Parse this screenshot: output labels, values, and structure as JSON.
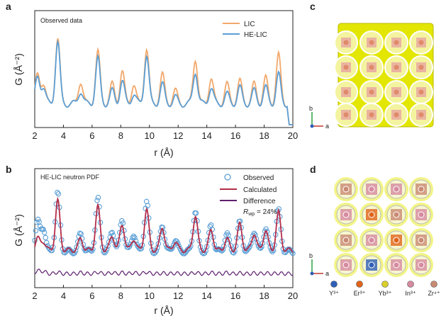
{
  "figure": {
    "panel_labels": [
      "a",
      "b",
      "c",
      "d"
    ],
    "structure_axes": [
      "b",
      "a"
    ],
    "ion_legend": [
      {
        "label": "Y³⁺",
        "color": "#2f5fb8"
      },
      {
        "label": "Er³⁺",
        "color": "#e0641a"
      },
      {
        "label": "Yb³⁺",
        "color": "#d9cf2a"
      },
      {
        "label": "In³⁺",
        "color": "#d68aa0"
      },
      {
        "label": "Zr⁴⁺",
        "color": "#c98a73"
      }
    ],
    "colors": {
      "lic": "#f2a86b",
      "he_lic": "#5b9fd6",
      "calculated": "#b42d4a",
      "difference": "#5e1f6e",
      "isosurface": "#e3e600"
    }
  },
  "chart_data": [
    {
      "type": "line",
      "panel": "a",
      "annotation": "Observed data",
      "xlabel": "r (Å)",
      "ylabel": "G (Å⁻²)",
      "xlim": [
        2,
        20
      ],
      "xticks": [
        2,
        4,
        6,
        8,
        10,
        12,
        14,
        16,
        18,
        20
      ],
      "grid": false,
      "legend_position": "top-right",
      "series": [
        {
          "name": "LIC",
          "color": "#f2a86b",
          "peaks": [
            [
              2.2,
              0.45
            ],
            [
              2.6,
              0.3
            ],
            [
              3.6,
              1.0
            ],
            [
              5.2,
              0.35
            ],
            [
              6.4,
              0.8
            ],
            [
              7.4,
              0.3
            ],
            [
              8.1,
              0.5
            ],
            [
              8.9,
              0.3
            ],
            [
              9.8,
              0.85
            ],
            [
              10.9,
              0.45
            ],
            [
              11.8,
              0.2
            ],
            [
              13.2,
              0.7
            ],
            [
              14.3,
              0.4
            ],
            [
              15.4,
              0.3
            ],
            [
              16.3,
              0.35
            ],
            [
              17.3,
              0.3
            ],
            [
              18.1,
              0.4
            ],
            [
              19.0,
              0.75
            ]
          ]
        },
        {
          "name": "HE-LIC",
          "color": "#5b9fd6",
          "peaks": [
            [
              2.2,
              0.4
            ],
            [
              2.6,
              0.25
            ],
            [
              3.6,
              0.95
            ],
            [
              5.2,
              0.2
            ],
            [
              6.4,
              0.7
            ],
            [
              7.4,
              0.2
            ],
            [
              8.1,
              0.35
            ],
            [
              8.9,
              0.15
            ],
            [
              9.8,
              0.75
            ],
            [
              10.9,
              0.3
            ],
            [
              11.8,
              0.1
            ],
            [
              13.2,
              0.5
            ],
            [
              14.3,
              0.25
            ],
            [
              15.4,
              0.15
            ],
            [
              16.3,
              0.25
            ],
            [
              17.3,
              0.2
            ],
            [
              18.1,
              0.25
            ],
            [
              19.0,
              0.45
            ]
          ]
        }
      ]
    },
    {
      "type": "line",
      "panel": "b",
      "annotation": "HE-LIC neutron PDF",
      "r_wp_label": "R",
      "r_wp_sub": "wp",
      "r_wp_value": " = 24%",
      "xlabel": "r (Å)",
      "ylabel": "G (Å⁻²)",
      "xlim": [
        2,
        20
      ],
      "xticks": [
        2,
        4,
        6,
        8,
        10,
        12,
        14,
        16,
        18,
        20
      ],
      "grid": false,
      "legend_position": "top-right",
      "series": [
        {
          "name": "Observed",
          "style": "open-circles",
          "color": "#5b9fd6",
          "peaks": [
            [
              2.2,
              0.5
            ],
            [
              2.6,
              0.4
            ],
            [
              3.6,
              1.0
            ],
            [
              5.2,
              0.3
            ],
            [
              6.4,
              0.9
            ],
            [
              7.4,
              0.35
            ],
            [
              8.1,
              0.55
            ],
            [
              8.9,
              0.3
            ],
            [
              9.8,
              0.85
            ],
            [
              10.9,
              0.45
            ],
            [
              11.8,
              0.2
            ],
            [
              13.2,
              0.7
            ],
            [
              14.3,
              0.45
            ],
            [
              15.4,
              0.3
            ],
            [
              16.3,
              0.5
            ],
            [
              17.3,
              0.35
            ],
            [
              18.1,
              0.4
            ],
            [
              19.0,
              0.7
            ]
          ]
        },
        {
          "name": "Calculated",
          "style": "line",
          "color": "#b42d4a",
          "peaks": [
            [
              2.2,
              0.2
            ],
            [
              2.6,
              0.15
            ],
            [
              3.6,
              0.85
            ],
            [
              5.2,
              0.2
            ],
            [
              6.4,
              0.75
            ],
            [
              7.4,
              0.25
            ],
            [
              8.1,
              0.45
            ],
            [
              8.9,
              0.2
            ],
            [
              9.8,
              0.7
            ],
            [
              10.9,
              0.4
            ],
            [
              11.8,
              0.15
            ],
            [
              13.2,
              0.6
            ],
            [
              14.3,
              0.35
            ],
            [
              15.4,
              0.2
            ],
            [
              16.3,
              0.45
            ],
            [
              17.3,
              0.3
            ],
            [
              18.1,
              0.35
            ],
            [
              19.0,
              0.65
            ]
          ]
        },
        {
          "name": "Difference",
          "style": "line",
          "color": "#5e1f6e"
        }
      ]
    }
  ]
}
